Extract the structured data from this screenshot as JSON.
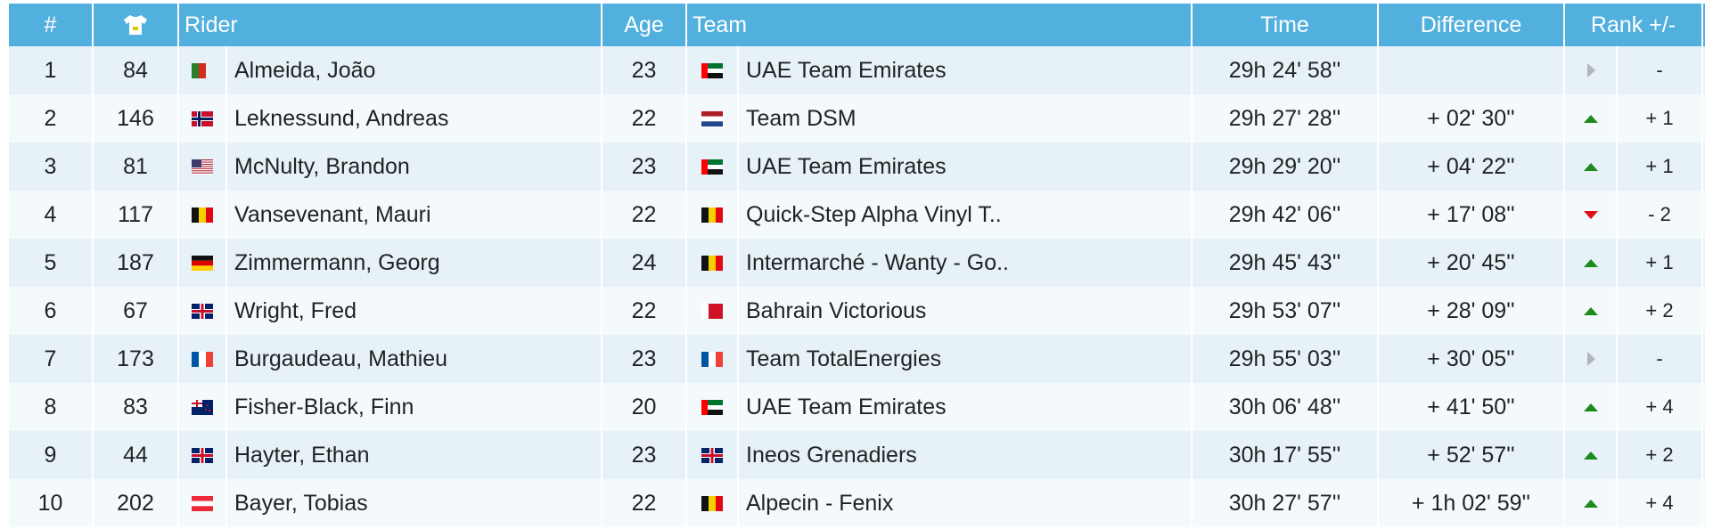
{
  "table": {
    "headers": {
      "rank": "#",
      "rider": "Rider",
      "age": "Age",
      "team": "Team",
      "time": "Time",
      "difference": "Difference",
      "rank_change": "Rank +/-"
    },
    "rows": [
      {
        "rank": 1,
        "bib": 84,
        "rider": "Almeida, João",
        "age": 23,
        "team": "UAE Team Emirates",
        "time": "29h 24' 58''",
        "difference": null,
        "rank_change": "-"
      },
      {
        "rank": 2,
        "bib": 146,
        "rider": "Leknessund, Andreas",
        "age": 22,
        "team": "Team DSM",
        "time": "29h 27' 28''",
        "difference": "+ 02' 30''",
        "rank_change": "+ 1"
      },
      {
        "rank": 3,
        "bib": 81,
        "rider": "McNulty, Brandon",
        "age": 23,
        "team": "UAE Team Emirates",
        "time": "29h 29' 20''",
        "difference": "+ 04' 22''",
        "rank_change": "+ 1"
      },
      {
        "rank": 4,
        "bib": 117,
        "rider": "Vansevenant, Mauri",
        "age": 22,
        "team": "Quick-Step Alpha Vinyl T..",
        "time": "29h 42' 06''",
        "difference": "+ 17' 08''",
        "rank_change": "- 2"
      },
      {
        "rank": 5,
        "bib": 187,
        "rider": "Zimmermann, Georg",
        "age": 24,
        "team": "Intermarché - Wanty - Go..",
        "time": "29h 45' 43''",
        "difference": "+ 20' 45''",
        "rank_change": "+ 1"
      },
      {
        "rank": 6,
        "bib": 67,
        "rider": "Wright, Fred",
        "age": 22,
        "team": "Bahrain Victorious",
        "time": "29h 53' 07''",
        "difference": "+ 28' 09''",
        "rank_change": "+ 2"
      },
      {
        "rank": 7,
        "bib": 173,
        "rider": "Burgaudeau, Mathieu",
        "age": 23,
        "team": "Team TotalEnergies",
        "time": "29h 55' 03''",
        "difference": "+ 30' 05''",
        "rank_change": "-"
      },
      {
        "rank": 8,
        "bib": 83,
        "rider": "Fisher-Black, Finn",
        "age": 20,
        "team": "UAE Team Emirates",
        "time": "30h 06' 48''",
        "difference": "+ 41' 50''",
        "rank_change": "+ 4"
      },
      {
        "rank": 9,
        "bib": 44,
        "rider": "Hayter, Ethan",
        "age": 23,
        "team": "Ineos Grenadiers",
        "time": "30h 17' 55''",
        "difference": "+ 52' 57''",
        "rank_change": "+ 2"
      },
      {
        "rank": 10,
        "bib": 202,
        "rider": "Bayer, Tobias",
        "age": 22,
        "team": "Alpecin - Fenix",
        "time": "30h 27' 57''",
        "difference": "+ 1h 02' 59''",
        "rank_change": "+ 4"
      }
    ]
  }
}
